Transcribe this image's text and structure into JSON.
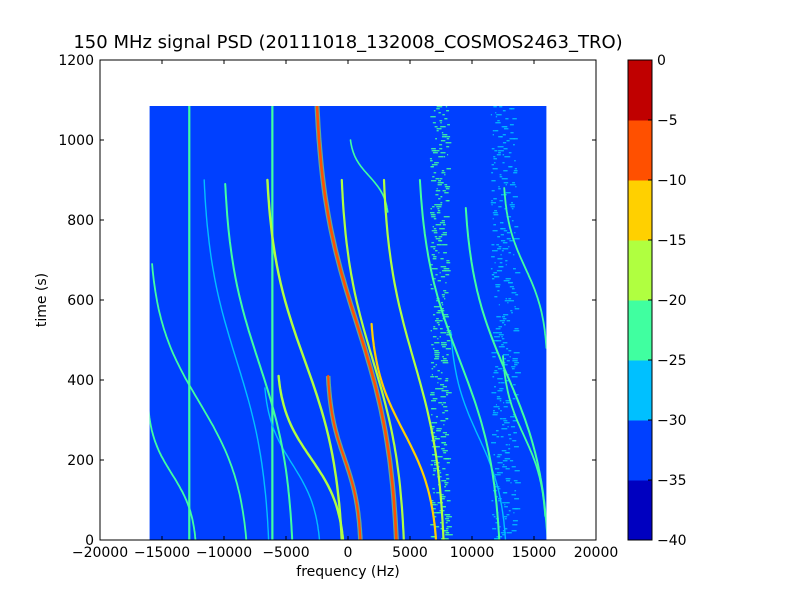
{
  "chart_data": {
    "type": "heatmap",
    "title": "150 MHz signal PSD (20111018_132008_COSMOS2463_TRO)",
    "xlabel": "frequency (Hz)",
    "ylabel": "time (s)",
    "xlim": [
      -20000,
      20000
    ],
    "ylim": [
      0,
      1200
    ],
    "x_ticks": [
      "−20000",
      "−15000",
      "−10000",
      "−5000",
      "0",
      "5000",
      "10000",
      "15000",
      "20000"
    ],
    "x_tick_values": [
      -20000,
      -15000,
      -10000,
      -5000,
      0,
      5000,
      10000,
      15000,
      20000
    ],
    "y_ticks": [
      "0",
      "200",
      "400",
      "600",
      "800",
      "1000",
      "1200"
    ],
    "y_tick_values": [
      0,
      200,
      400,
      600,
      800,
      1000,
      1200
    ],
    "data_extent": {
      "x": [
        -16000,
        16000
      ],
      "y": [
        0,
        1085
      ]
    },
    "background_level": -35,
    "colorbar": {
      "levels": [
        -40,
        -35,
        -30,
        -25,
        -20,
        -15,
        -10,
        -5,
        0
      ],
      "tick_labels": [
        "−40",
        "−35",
        "−30",
        "−25",
        "−20",
        "−15",
        "−10",
        "−5",
        "0"
      ],
      "colors": [
        "#0000c0",
        "#0040ff",
        "#00c0ff",
        "#40ffa0",
        "#b0ff40",
        "#ffd000",
        "#ff5000",
        "#c00000"
      ]
    },
    "features": {
      "vertical_lines": [
        {
          "x": -12800,
          "y": [
            0,
            1085
          ],
          "level": -25
        },
        {
          "x": -6100,
          "y": [
            0,
            1085
          ],
          "level": -25
        }
      ],
      "noise_bands": [
        {
          "x": [
            6600,
            8000
          ],
          "y": [
            0,
            1085
          ],
          "level": -25
        },
        {
          "x": [
            11500,
            13500
          ],
          "y": [
            0,
            1085
          ],
          "level": -30
        }
      ],
      "doppler_tracks": [
        {
          "center_x": 700,
          "amplitude": 3200,
          "t0": 1085,
          "t1": 0,
          "level": -10,
          "width": 2.6
        },
        {
          "center_x": -300,
          "amplitude": 1300,
          "t0": 410,
          "t1": 0,
          "level": -10,
          "width": 2.2
        },
        {
          "center_x": 4500,
          "amplitude": 2600,
          "t0": 540,
          "t1": 0,
          "level": -15,
          "width": 2.2
        },
        {
          "center_x": -3500,
          "amplitude": 3000,
          "t0": 900,
          "t1": 0,
          "level": -20,
          "width": 2.4
        },
        {
          "center_x": -3000,
          "amplitude": 2600,
          "t0": 410,
          "t1": 0,
          "level": -20,
          "width": 2.4
        },
        {
          "center_x": 2000,
          "amplitude": 2500,
          "t0": 900,
          "t1": 0,
          "level": -20,
          "width": 2.2
        },
        {
          "center_x": 5300,
          "amplitude": 2400,
          "t0": 900,
          "t1": 0,
          "level": -20,
          "width": 2.2
        },
        {
          "center_x": -7200,
          "amplitude": 2700,
          "t0": 890,
          "t1": 0,
          "level": -25,
          "width": 2
        },
        {
          "center_x": 9000,
          "amplitude": 3200,
          "t0": 900,
          "t1": 0,
          "level": -25,
          "width": 2
        },
        {
          "center_x": 12800,
          "amplitude": 3300,
          "t0": 830,
          "t1": 0,
          "level": -25,
          "width": 2
        },
        {
          "center_x": -12000,
          "amplitude": 3800,
          "t0": 690,
          "t1": 0,
          "level": -25,
          "width": 1.8
        },
        {
          "center_x": -14200,
          "amplitude": 1900,
          "t0": 330,
          "t1": 0,
          "level": -25,
          "width": 1.8
        },
        {
          "center_x": 14300,
          "amplitude": 1700,
          "t0": 880,
          "t1": 480,
          "level": -25,
          "width": 1.8
        },
        {
          "center_x": 14200,
          "amplitude": 1700,
          "t0": 460,
          "t1": 60,
          "level": -25,
          "width": 1.8
        },
        {
          "center_x": 1700,
          "amplitude": 1500,
          "t0": 1000,
          "t1": 820,
          "level": -25,
          "width": 1.6
        },
        {
          "center_x": -9000,
          "amplitude": 2600,
          "t0": 900,
          "t1": 0,
          "level": -30,
          "width": 1.4
        },
        {
          "center_x": -4500,
          "amplitude": 2200,
          "t0": 380,
          "t1": 0,
          "level": -30,
          "width": 1.4
        },
        {
          "center_x": 10500,
          "amplitude": 2200,
          "t0": 520,
          "t1": 0,
          "level": -30,
          "width": 1.4
        }
      ]
    }
  }
}
